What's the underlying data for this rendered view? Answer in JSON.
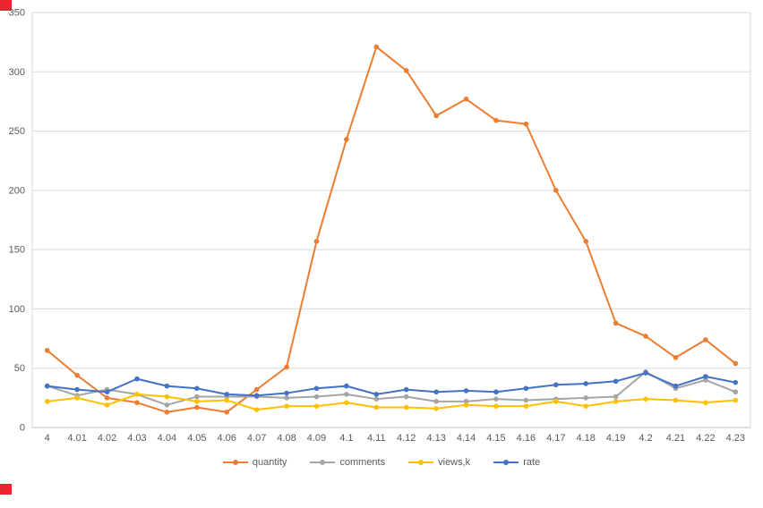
{
  "chart_data": {
    "type": "line",
    "title": "",
    "xlabel": "",
    "ylabel": "",
    "categories": [
      "4",
      "4.01",
      "4.02",
      "4.03",
      "4.04",
      "4.05",
      "4.06",
      "4.07",
      "4.08",
      "4.09",
      "4.1",
      "4.11",
      "4.12",
      "4.13",
      "4.14",
      "4.15",
      "4.16",
      "4.17",
      "4.18",
      "4.19",
      "4.2",
      "4.21",
      "4.22",
      "4.23"
    ],
    "series": [
      {
        "name": "quantity",
        "color": "#ED7D31",
        "values": [
          65,
          44,
          25,
          21,
          13,
          17,
          13,
          32,
          51,
          157,
          243,
          321,
          301,
          263,
          277,
          259,
          256,
          200,
          157,
          88,
          77,
          59,
          74,
          54
        ]
      },
      {
        "name": "comments",
        "color": "#A5A5A5",
        "values": [
          35,
          27,
          32,
          28,
          19,
          26,
          26,
          26,
          25,
          26,
          28,
          24,
          26,
          22,
          22,
          24,
          23,
          24,
          25,
          26,
          47,
          33,
          40,
          30
        ]
      },
      {
        "name": "views,k",
        "color": "#FFC000",
        "values": [
          22,
          25,
          19,
          28,
          26,
          22,
          23,
          15,
          18,
          18,
          21,
          17,
          17,
          16,
          19,
          18,
          18,
          22,
          18,
          22,
          24,
          23,
          21,
          23
        ]
      },
      {
        "name": "rate",
        "color": "#4472C4",
        "values": [
          35,
          32,
          30,
          41,
          35,
          33,
          28,
          27,
          29,
          33,
          35,
          28,
          32,
          30,
          31,
          30,
          33,
          36,
          37,
          39,
          46,
          35,
          43,
          38
        ]
      }
    ],
    "ylim": [
      0,
      350
    ],
    "ytick_step": 50,
    "ytick_labels": [
      "0",
      "50",
      "100",
      "150",
      "200",
      "250",
      "300",
      "350"
    ],
    "grid": "horizontal",
    "legend_position": "bottom",
    "gridline_color": "#D9D9D9",
    "axis_line_color": "#BFBFBF",
    "axis_text_color": "#595959"
  },
  "decorations": {
    "corner_mark_color": "#E8262D"
  }
}
